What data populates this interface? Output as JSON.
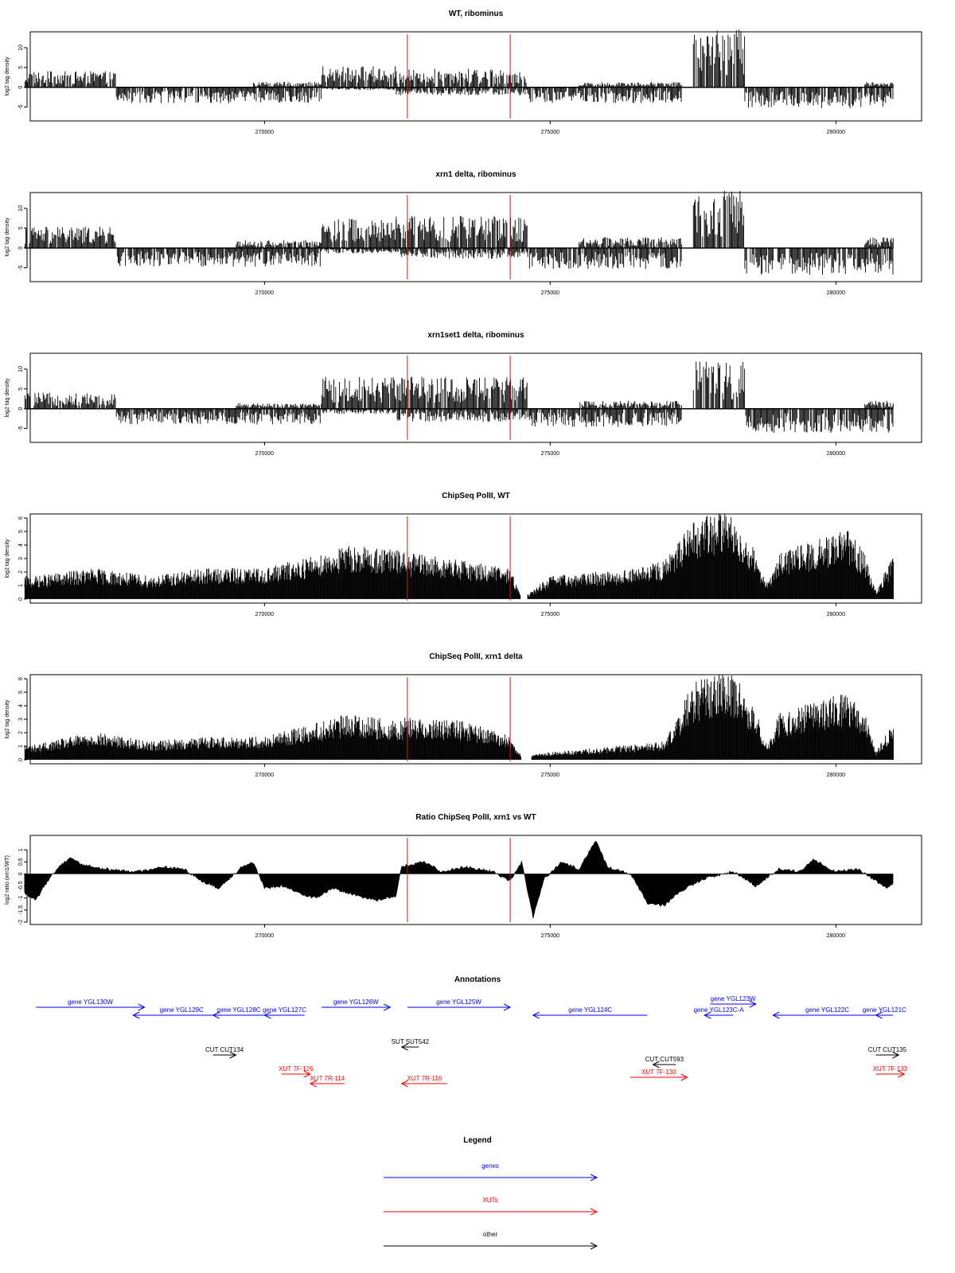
{
  "chart_data": [
    {
      "type": "bar",
      "title": "WT, ribominus",
      "ylabel": "log2 tag density",
      "ylim": [
        -8.5,
        14
      ],
      "yticks": [
        -5,
        0,
        5,
        10
      ],
      "xlim": [
        265900,
        281500
      ],
      "xticks": [
        270000,
        275000,
        280000
      ],
      "markers_x": [
        272500,
        274300
      ],
      "marker_color": "#ff0000",
      "bar_color": "#000000",
      "series": [
        {
          "direction": "+",
          "x_start": 265800,
          "x_end": 267400,
          "level": 3.0
        },
        {
          "direction": "-",
          "x_start": 267400,
          "x_end": 271000,
          "level": -3.0
        },
        {
          "direction": "+",
          "x_start": 269800,
          "x_end": 271000,
          "level": 1.0
        },
        {
          "direction": "+",
          "x_start": 271000,
          "x_end": 272300,
          "level": 4.0
        },
        {
          "direction": "-",
          "x_start": 271000,
          "x_end": 272300,
          "level": -0.5
        },
        {
          "direction": "+",
          "x_start": 272300,
          "x_end": 274600,
          "level": 3.5
        },
        {
          "direction": "-",
          "x_start": 272300,
          "x_end": 274600,
          "level": -1.5
        },
        {
          "direction": "-",
          "x_start": 274600,
          "x_end": 277300,
          "level": -3.0
        },
        {
          "direction": "+",
          "x_start": 275500,
          "x_end": 277300,
          "level": 1.0
        },
        {
          "direction": "+",
          "x_start": 277500,
          "x_end": 278400,
          "level": 11.0
        },
        {
          "direction": "-",
          "x_start": 278400,
          "x_end": 281000,
          "level": -4.0
        },
        {
          "direction": "+",
          "x_start": 280500,
          "x_end": 281000,
          "level": 1.0
        }
      ]
    },
    {
      "type": "bar",
      "title": "xrn1 delta, ribominus",
      "ylabel": "log2 tag density",
      "ylim": [
        -8.5,
        14
      ],
      "yticks": [
        -5,
        0,
        5,
        10
      ],
      "xlim": [
        265900,
        281500
      ],
      "xticks": [
        270000,
        275000,
        280000
      ],
      "markers_x": [
        272500,
        274300
      ],
      "marker_color": "#ff0000",
      "bar_color": "#000000",
      "series": [
        {
          "direction": "+",
          "x_start": 265800,
          "x_end": 267400,
          "level": 4.0
        },
        {
          "direction": "-",
          "x_start": 267400,
          "x_end": 271000,
          "level": -3.5
        },
        {
          "direction": "+",
          "x_start": 269500,
          "x_end": 271000,
          "level": 1.5
        },
        {
          "direction": "+",
          "x_start": 271000,
          "x_end": 272300,
          "level": 5.5
        },
        {
          "direction": "-",
          "x_start": 271000,
          "x_end": 272300,
          "level": -1.0
        },
        {
          "direction": "+",
          "x_start": 272300,
          "x_end": 274600,
          "level": 6.0
        },
        {
          "direction": "-",
          "x_start": 272300,
          "x_end": 274600,
          "level": -2.0
        },
        {
          "direction": "-",
          "x_start": 274600,
          "x_end": 277300,
          "level": -4.0
        },
        {
          "direction": "+",
          "x_start": 275500,
          "x_end": 277300,
          "level": 2.0
        },
        {
          "direction": "+",
          "x_start": 277500,
          "x_end": 278400,
          "level": 11.5
        },
        {
          "direction": "-",
          "x_start": 278400,
          "x_end": 281000,
          "level": -5.0
        },
        {
          "direction": "+",
          "x_start": 280500,
          "x_end": 281000,
          "level": 2.0
        }
      ]
    },
    {
      "type": "bar",
      "title": "xrn1set1 delta, ribominus",
      "ylabel": "log2 tag density",
      "ylim": [
        -8.5,
        14
      ],
      "yticks": [
        -5,
        0,
        5,
        10
      ],
      "xlim": [
        265900,
        281500
      ],
      "xticks": [
        270000,
        275000,
        280000
      ],
      "markers_x": [
        272500,
        274300
      ],
      "marker_color": "#ff0000",
      "bar_color": "#000000",
      "series": [
        {
          "direction": "+",
          "x_start": 265800,
          "x_end": 267400,
          "level": 3.0
        },
        {
          "direction": "-",
          "x_start": 267400,
          "x_end": 271000,
          "level": -3.0
        },
        {
          "direction": "+",
          "x_start": 269500,
          "x_end": 271000,
          "level": 1.0
        },
        {
          "direction": "+",
          "x_start": 271000,
          "x_end": 272300,
          "level": 6.0
        },
        {
          "direction": "-",
          "x_start": 271000,
          "x_end": 272300,
          "level": -1.0
        },
        {
          "direction": "+",
          "x_start": 272300,
          "x_end": 274600,
          "level": 6.0
        },
        {
          "direction": "-",
          "x_start": 272300,
          "x_end": 274600,
          "level": -2.5
        },
        {
          "direction": "-",
          "x_start": 274600,
          "x_end": 277300,
          "level": -3.5
        },
        {
          "direction": "+",
          "x_start": 275500,
          "x_end": 277300,
          "level": 1.5
        },
        {
          "direction": "+",
          "x_start": 277500,
          "x_end": 278400,
          "level": 9.0
        },
        {
          "direction": "-",
          "x_start": 278400,
          "x_end": 281000,
          "level": -4.5
        },
        {
          "direction": "+",
          "x_start": 280500,
          "x_end": 281000,
          "level": 1.5
        }
      ]
    },
    {
      "type": "bar",
      "title": "ChipSeq PolII, WT",
      "ylabel": "log2 tag density",
      "ylim": [
        -0.3,
        6.3
      ],
      "yticks": [
        0,
        1,
        2,
        3,
        4,
        5,
        6
      ],
      "xlim": [
        265900,
        281500
      ],
      "xticks": [
        270000,
        275000,
        280000
      ],
      "markers_x": [
        272500,
        274300
      ],
      "marker_color": "#ff0000",
      "bar_color": "#000000",
      "profile": [
        {
          "x": 266000,
          "y": 1.5
        },
        {
          "x": 267000,
          "y": 2.0
        },
        {
          "x": 268000,
          "y": 1.5
        },
        {
          "x": 269000,
          "y": 2.0
        },
        {
          "x": 270000,
          "y": 2.0
        },
        {
          "x": 270500,
          "y": 2.5
        },
        {
          "x": 271500,
          "y": 3.5
        },
        {
          "x": 272300,
          "y": 3.2
        },
        {
          "x": 272500,
          "y": 3.0
        },
        {
          "x": 273500,
          "y": 2.5
        },
        {
          "x": 274300,
          "y": 2.0
        },
        {
          "x": 274500,
          "y": 0.0
        },
        {
          "x": 275000,
          "y": 1.5
        },
        {
          "x": 276500,
          "y": 2.0
        },
        {
          "x": 277000,
          "y": 2.5
        },
        {
          "x": 277500,
          "y": 5.0
        },
        {
          "x": 278000,
          "y": 6.0
        },
        {
          "x": 278300,
          "y": 5.0
        },
        {
          "x": 278600,
          "y": 3.0
        },
        {
          "x": 278800,
          "y": 1.0
        },
        {
          "x": 279000,
          "y": 3.0
        },
        {
          "x": 279800,
          "y": 4.0
        },
        {
          "x": 280200,
          "y": 4.5
        },
        {
          "x": 280500,
          "y": 3.0
        },
        {
          "x": 280700,
          "y": 0.5
        },
        {
          "x": 281000,
          "y": 3.0
        }
      ]
    },
    {
      "type": "bar",
      "title": "ChipSeq PolII, xrn1 delta",
      "ylabel": "log2 tag density",
      "ylim": [
        -0.3,
        6.3
      ],
      "yticks": [
        0,
        1,
        2,
        3,
        4,
        5,
        6
      ],
      "xlim": [
        265900,
        281500
      ],
      "xticks": [
        270000,
        275000,
        280000
      ],
      "markers_x": [
        272500,
        274300
      ],
      "marker_color": "#ff0000",
      "bar_color": "#000000",
      "profile": [
        {
          "x": 266000,
          "y": 1.0
        },
        {
          "x": 267000,
          "y": 1.8
        },
        {
          "x": 268000,
          "y": 1.2
        },
        {
          "x": 269000,
          "y": 1.5
        },
        {
          "x": 270000,
          "y": 1.5
        },
        {
          "x": 270500,
          "y": 2.0
        },
        {
          "x": 271500,
          "y": 3.0
        },
        {
          "x": 272300,
          "y": 2.5
        },
        {
          "x": 272500,
          "y": 2.8
        },
        {
          "x": 273500,
          "y": 2.5
        },
        {
          "x": 274300,
          "y": 1.5
        },
        {
          "x": 274500,
          "y": 0.2
        },
        {
          "x": 275000,
          "y": 0.5
        },
        {
          "x": 276500,
          "y": 1.0
        },
        {
          "x": 277000,
          "y": 1.2
        },
        {
          "x": 277500,
          "y": 5.0
        },
        {
          "x": 278000,
          "y": 6.0
        },
        {
          "x": 278300,
          "y": 5.0
        },
        {
          "x": 278600,
          "y": 3.0
        },
        {
          "x": 278800,
          "y": 1.0
        },
        {
          "x": 279000,
          "y": 3.0
        },
        {
          "x": 279800,
          "y": 4.0
        },
        {
          "x": 280200,
          "y": 4.3
        },
        {
          "x": 280500,
          "y": 3.0
        },
        {
          "x": 280700,
          "y": 0.5
        },
        {
          "x": 281000,
          "y": 2.5
        }
      ]
    },
    {
      "type": "area",
      "title": "Ratio ChipSeq PolII, xrn1 vs WT",
      "ylabel": "log2 ratio (xrn1/WT)",
      "ylim": [
        -2.1,
        1.6
      ],
      "yticks": [
        -2.0,
        -1.5,
        -1.0,
        -0.5,
        0.0,
        0.5,
        1.0
      ],
      "xlim": [
        265900,
        281500
      ],
      "xticks": [
        270000,
        275000,
        280000
      ],
      "markers_x": [
        272500,
        274300
      ],
      "marker_color": "#ff0000",
      "bar_color": "#000000",
      "profile": [
        {
          "x": 265800,
          "y": -0.8
        },
        {
          "x": 266000,
          "y": -1.1
        },
        {
          "x": 266200,
          "y": -0.3
        },
        {
          "x": 266400,
          "y": 0.3
        },
        {
          "x": 266600,
          "y": 0.7
        },
        {
          "x": 266800,
          "y": 0.4
        },
        {
          "x": 267200,
          "y": 0.2
        },
        {
          "x": 267800,
          "y": 0.1
        },
        {
          "x": 268200,
          "y": 0.3
        },
        {
          "x": 268600,
          "y": 0.2
        },
        {
          "x": 268900,
          "y": -0.3
        },
        {
          "x": 269200,
          "y": -0.6
        },
        {
          "x": 269600,
          "y": 0.3
        },
        {
          "x": 269800,
          "y": 0.5
        },
        {
          "x": 270000,
          "y": -0.6
        },
        {
          "x": 270300,
          "y": -0.5
        },
        {
          "x": 270600,
          "y": -0.8
        },
        {
          "x": 270900,
          "y": -1.0
        },
        {
          "x": 271200,
          "y": -0.6
        },
        {
          "x": 271600,
          "y": -0.9
        },
        {
          "x": 272000,
          "y": -1.1
        },
        {
          "x": 272300,
          "y": -0.9
        },
        {
          "x": 272400,
          "y": 0.3
        },
        {
          "x": 272800,
          "y": 0.5
        },
        {
          "x": 273100,
          "y": 0.1
        },
        {
          "x": 273500,
          "y": 0.3
        },
        {
          "x": 274000,
          "y": 0.1
        },
        {
          "x": 274300,
          "y": -0.3
        },
        {
          "x": 274500,
          "y": 0.5
        },
        {
          "x": 274700,
          "y": -1.8
        },
        {
          "x": 274900,
          "y": -0.2
        },
        {
          "x": 275200,
          "y": 0.5
        },
        {
          "x": 275500,
          "y": 0.2
        },
        {
          "x": 275800,
          "y": 1.4
        },
        {
          "x": 276000,
          "y": 0.3
        },
        {
          "x": 276400,
          "y": 0.0
        },
        {
          "x": 276700,
          "y": -1.2
        },
        {
          "x": 277000,
          "y": -1.3
        },
        {
          "x": 277300,
          "y": -0.7
        },
        {
          "x": 277700,
          "y": -0.2
        },
        {
          "x": 278200,
          "y": 0.1
        },
        {
          "x": 278600,
          "y": -0.5
        },
        {
          "x": 279000,
          "y": 0.2
        },
        {
          "x": 279400,
          "y": 0.1
        },
        {
          "x": 279600,
          "y": 0.6
        },
        {
          "x": 280000,
          "y": 0.1
        },
        {
          "x": 280400,
          "y": 0.2
        },
        {
          "x": 280700,
          "y": -0.3
        },
        {
          "x": 280900,
          "y": -0.6
        },
        {
          "x": 281000,
          "y": -0.4
        }
      ]
    }
  ],
  "annotations": {
    "title": "Annotations",
    "features": [
      {
        "label": "gene YGL130W",
        "kind": "gene",
        "strand": "+",
        "start": 266000,
        "end": 267900
      },
      {
        "label": "gene YGL129C",
        "kind": "gene",
        "strand": "-",
        "start": 267700,
        "end": 269400
      },
      {
        "label": "gene YGL128C",
        "kind": "gene",
        "strand": "-",
        "start": 269100,
        "end": 270000
      },
      {
        "label": "gene YGL127C",
        "kind": "gene",
        "strand": "-",
        "start": 270000,
        "end": 270700
      },
      {
        "label": "gene YGL126W",
        "kind": "gene",
        "strand": "+",
        "start": 271000,
        "end": 272200
      },
      {
        "label": "gene YGL125W",
        "kind": "gene",
        "strand": "+",
        "start": 272500,
        "end": 274300
      },
      {
        "label": "gene YGL124C",
        "kind": "gene",
        "strand": "-",
        "start": 274700,
        "end": 276700
      },
      {
        "label": "gene YGL123W",
        "kind": "gene",
        "strand": "+",
        "start": 277800,
        "end": 278600
      },
      {
        "label": "gene YGL123C-A",
        "kind": "gene",
        "strand": "-",
        "start": 277700,
        "end": 278200
      },
      {
        "label": "gene YGL122C",
        "kind": "gene",
        "strand": "-",
        "start": 278900,
        "end": 280800
      },
      {
        "label": "gene YGL121C",
        "kind": "gene",
        "strand": "-",
        "start": 280700,
        "end": 281000
      },
      {
        "label": "CUT CUT134",
        "kind": "other",
        "strand": "+",
        "start": 269100,
        "end": 269500
      },
      {
        "label": "SUT SUT542",
        "kind": "other",
        "strand": "-",
        "start": 272400,
        "end": 272700
      },
      {
        "label": "CUT CUT593",
        "kind": "other",
        "strand": "-",
        "start": 276800,
        "end": 277200
      },
      {
        "label": "CUT CUT135",
        "kind": "other",
        "strand": "+",
        "start": 280700,
        "end": 281100
      },
      {
        "label": "XUT 7F-126",
        "kind": "xut",
        "strand": "+",
        "start": 270300,
        "end": 270800
      },
      {
        "label": "XUT 7R-114",
        "kind": "xut",
        "strand": "-",
        "start": 270800,
        "end": 271400
      },
      {
        "label": "XUT 7R-116",
        "kind": "xut",
        "strand": "-",
        "start": 272400,
        "end": 273200
      },
      {
        "label": "XUT 7F-130",
        "kind": "xut",
        "strand": "+",
        "start": 276400,
        "end": 277400
      },
      {
        "label": "XUT 7F-133",
        "kind": "xut",
        "strand": "+",
        "start": 280700,
        "end": 281200
      }
    ]
  },
  "legend": {
    "title": "Legend",
    "items": [
      {
        "label": "genes",
        "color": "#0000ff"
      },
      {
        "label": "XUTs",
        "color": "#ff0000"
      },
      {
        "label": "other",
        "color": "#000000"
      }
    ]
  }
}
